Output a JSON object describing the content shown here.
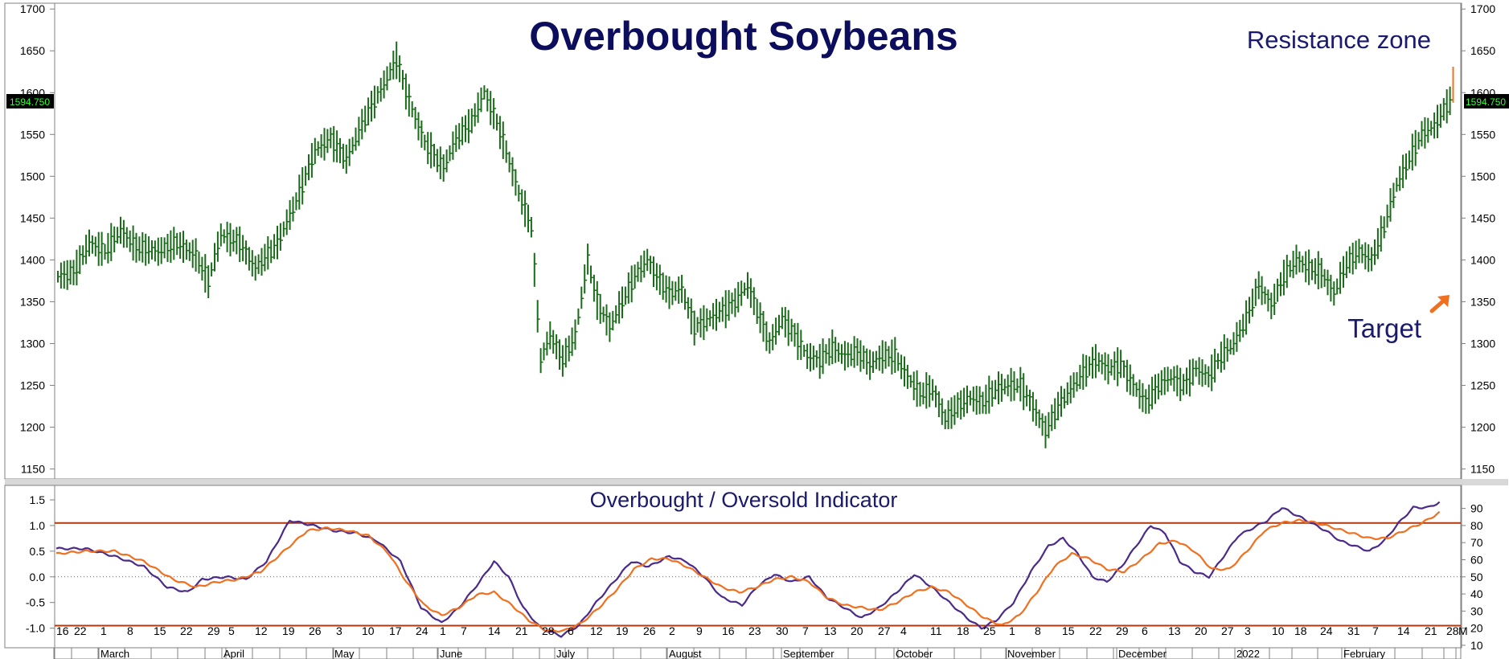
{
  "chart_data": [
    {
      "type": "ohlc",
      "title": "Overbought Soybeans",
      "ylim": [
        1140,
        1705
      ],
      "y_ticks": [
        1150,
        1200,
        1250,
        1300,
        1350,
        1400,
        1450,
        1500,
        1550,
        1600,
        1650,
        1700
      ],
      "last_price_label": "1594.750",
      "last_value": 1594.75,
      "annotations": [
        {
          "text": "Resistance zone",
          "color": "#1a1a6e"
        },
        {
          "text": "Target",
          "color": "#1a1a6e",
          "arrow_color": "#f07020"
        }
      ],
      "bar_color": "#1a6b1a",
      "last_bar_color": "#f07020",
      "close_anchors": [
        [
          0,
          1380
        ],
        [
          5,
          1385
        ],
        [
          10,
          1420
        ],
        [
          15,
          1410
        ],
        [
          20,
          1435
        ],
        [
          25,
          1415
        ],
        [
          32,
          1410
        ],
        [
          38,
          1420
        ],
        [
          44,
          1405
        ],
        [
          48,
          1375
        ],
        [
          52,
          1430
        ],
        [
          58,
          1420
        ],
        [
          63,
          1390
        ],
        [
          70,
          1420
        ],
        [
          76,
          1470
        ],
        [
          82,
          1530
        ],
        [
          87,
          1545
        ],
        [
          92,
          1520
        ],
        [
          98,
          1570
        ],
        [
          104,
          1610
        ],
        [
          108,
          1640
        ],
        [
          112,
          1590
        ],
        [
          117,
          1540
        ],
        [
          123,
          1510
        ],
        [
          127,
          1545
        ],
        [
          132,
          1565
        ],
        [
          136,
          1600
        ],
        [
          140,
          1565
        ],
        [
          143,
          1530
        ],
        [
          147,
          1480
        ],
        [
          151,
          1440
        ],
        [
          154,
          1280
        ],
        [
          157,
          1310
        ],
        [
          161,
          1280
        ],
        [
          165,
          1310
        ],
        [
          169,
          1400
        ],
        [
          172,
          1350
        ],
        [
          176,
          1320
        ],
        [
          180,
          1350
        ],
        [
          184,
          1380
        ],
        [
          188,
          1400
        ],
        [
          191,
          1380
        ],
        [
          195,
          1360
        ],
        [
          199,
          1365
        ],
        [
          203,
          1320
        ],
        [
          208,
          1330
        ],
        [
          212,
          1340
        ],
        [
          216,
          1350
        ],
        [
          220,
          1370
        ],
        [
          223,
          1340
        ],
        [
          227,
          1300
        ],
        [
          231,
          1330
        ],
        [
          235,
          1310
        ],
        [
          239,
          1285
        ],
        [
          243,
          1280
        ],
        [
          247,
          1295
        ],
        [
          251,
          1285
        ],
        [
          255,
          1290
        ],
        [
          259,
          1275
        ],
        [
          263,
          1285
        ],
        [
          267,
          1285
        ],
        [
          271,
          1260
        ],
        [
          275,
          1240
        ],
        [
          279,
          1245
        ],
        [
          283,
          1210
        ],
        [
          287,
          1225
        ],
        [
          291,
          1235
        ],
        [
          295,
          1230
        ],
        [
          299,
          1245
        ],
        [
          303,
          1250
        ],
        [
          307,
          1250
        ],
        [
          311,
          1225
        ],
        [
          315,
          1195
        ],
        [
          319,
          1225
        ],
        [
          323,
          1245
        ],
        [
          327,
          1265
        ],
        [
          331,
          1280
        ],
        [
          335,
          1270
        ],
        [
          339,
          1275
        ],
        [
          343,
          1250
        ],
        [
          347,
          1230
        ],
        [
          351,
          1250
        ],
        [
          355,
          1260
        ],
        [
          359,
          1250
        ],
        [
          363,
          1270
        ],
        [
          367,
          1260
        ],
        [
          371,
          1285
        ],
        [
          375,
          1300
        ],
        [
          379,
          1330
        ],
        [
          383,
          1370
        ],
        [
          387,
          1345
        ],
        [
          391,
          1380
        ],
        [
          395,
          1400
        ],
        [
          399,
          1390
        ],
        [
          403,
          1385
        ],
        [
          407,
          1360
        ],
        [
          411,
          1395
        ],
        [
          415,
          1410
        ],
        [
          419,
          1400
        ],
        [
          423,
          1440
        ],
        [
          427,
          1490
        ],
        [
          431,
          1520
        ],
        [
          435,
          1550
        ],
        [
          439,
          1560
        ],
        [
          443,
          1585
        ],
        [
          445,
          1595
        ]
      ],
      "x_ticks_days": [
        "16",
        "22",
        "1",
        "8",
        "15",
        "22",
        "29",
        "5",
        "12",
        "19",
        "26",
        "3",
        "10",
        "17",
        "24",
        "1",
        "7",
        "14",
        "21",
        "28",
        "6",
        "12",
        "19",
        "26",
        "2",
        "9",
        "16",
        "23",
        "30",
        "7",
        "13",
        "20",
        "27",
        "4",
        "11",
        "18",
        "25",
        "1",
        "8",
        "15",
        "22",
        "29",
        "6",
        "13",
        "20",
        "27",
        "3",
        "10",
        "18",
        "24",
        "31",
        "7",
        "14",
        "21",
        "28",
        "M"
      ],
      "x_ticks_months": [
        "March",
        "April",
        "May",
        "June",
        "July",
        "August",
        "September",
        "October",
        "November",
        "December",
        "2022",
        "February"
      ]
    },
    {
      "type": "line",
      "title": "Overbought / Oversold Indicator",
      "ylim": [
        -1.35,
        1.75
      ],
      "y_ticks_left": [
        "1.5",
        "1.0",
        "0.5",
        "0.0",
        "-0.5",
        "-1.0"
      ],
      "y_ticks_right": [
        "90",
        "80",
        "70",
        "60",
        "50",
        "40",
        "30",
        "20",
        "10"
      ],
      "overbought_level": 1.05,
      "oversold_level": -0.95,
      "series": [
        {
          "color": "#4a2a8a",
          "anchors": [
            [
              0,
              0.55
            ],
            [
              10,
              0.55
            ],
            [
              20,
              0.4
            ],
            [
              30,
              0.2
            ],
            [
              38,
              -0.2
            ],
            [
              45,
              -0.3
            ],
            [
              50,
              -0.05
            ],
            [
              58,
              0.0
            ],
            [
              65,
              -0.05
            ],
            [
              72,
              0.3
            ],
            [
              80,
              1.1
            ],
            [
              88,
              1.0
            ],
            [
              95,
              0.9
            ],
            [
              103,
              0.85
            ],
            [
              110,
              0.7
            ],
            [
              118,
              0.3
            ],
            [
              125,
              -0.6
            ],
            [
              132,
              -0.9
            ],
            [
              138,
              -0.6
            ],
            [
              145,
              -0.1
            ],
            [
              150,
              0.3
            ],
            [
              155,
              0.0
            ],
            [
              160,
              -0.6
            ],
            [
              166,
              -1.0
            ],
            [
              173,
              -1.15
            ],
            [
              179,
              -0.95
            ],
            [
              185,
              -0.5
            ],
            [
              191,
              -0.1
            ],
            [
              197,
              0.3
            ],
            [
              203,
              0.2
            ],
            [
              210,
              0.4
            ],
            [
              216,
              0.3
            ],
            [
              222,
              0.0
            ],
            [
              228,
              -0.4
            ],
            [
              235,
              -0.55
            ],
            [
              240,
              -0.2
            ],
            [
              246,
              0.05
            ],
            [
              252,
              -0.1
            ],
            [
              258,
              0.0
            ],
            [
              264,
              -0.4
            ],
            [
              270,
              -0.6
            ],
            [
              276,
              -0.8
            ],
            [
              282,
              -0.6
            ],
            [
              288,
              -0.3
            ],
            [
              294,
              0.05
            ],
            [
              300,
              -0.2
            ],
            [
              306,
              -0.5
            ],
            [
              312,
              -0.8
            ],
            [
              317,
              -1.0
            ],
            [
              322,
              -0.85
            ],
            [
              328,
              -0.5
            ],
            [
              334,
              0.1
            ],
            [
              340,
              0.6
            ],
            [
              345,
              0.75
            ],
            [
              350,
              0.45
            ],
            [
              355,
              0.0
            ],
            [
              360,
              -0.1
            ],
            [
              365,
              0.2
            ],
            [
              370,
              0.6
            ],
            [
              375,
              1.0
            ],
            [
              380,
              0.85
            ],
            [
              385,
              0.3
            ],
            [
              390,
              0.1
            ],
            [
              395,
              0.0
            ],
            [
              400,
              0.4
            ],
            [
              405,
              0.8
            ],
            [
              410,
              0.95
            ],
            [
              415,
              1.1
            ],
            [
              420,
              1.35
            ],
            [
              425,
              1.2
            ],
            [
              430,
              1.05
            ],
            [
              435,
              0.9
            ],
            [
              440,
              0.7
            ],
            [
              445,
              0.6
            ],
            [
              450,
              0.5
            ],
            [
              455,
              0.7
            ],
            [
              460,
              1.05
            ],
            [
              465,
              1.35
            ],
            [
              470,
              1.35
            ],
            [
              474,
              1.45
            ]
          ]
        },
        {
          "color": "#f07020",
          "anchors": [
            [
              0,
              0.45
            ],
            [
              10,
              0.5
            ],
            [
              20,
              0.5
            ],
            [
              30,
              0.3
            ],
            [
              40,
              -0.05
            ],
            [
              48,
              -0.2
            ],
            [
              55,
              -0.1
            ],
            [
              62,
              -0.05
            ],
            [
              70,
              0.1
            ],
            [
              78,
              0.5
            ],
            [
              86,
              0.9
            ],
            [
              93,
              0.95
            ],
            [
              100,
              0.9
            ],
            [
              107,
              0.8
            ],
            [
              114,
              0.45
            ],
            [
              120,
              -0.1
            ],
            [
              126,
              -0.55
            ],
            [
              132,
              -0.75
            ],
            [
              138,
              -0.6
            ],
            [
              144,
              -0.35
            ],
            [
              150,
              -0.3
            ],
            [
              156,
              -0.55
            ],
            [
              162,
              -0.85
            ],
            [
              168,
              -1.05
            ],
            [
              174,
              -1.05
            ],
            [
              180,
              -0.9
            ],
            [
              186,
              -0.6
            ],
            [
              192,
              -0.25
            ],
            [
              198,
              0.15
            ],
            [
              204,
              0.35
            ],
            [
              210,
              0.35
            ],
            [
              216,
              0.2
            ],
            [
              222,
              0.0
            ],
            [
              228,
              -0.2
            ],
            [
              234,
              -0.3
            ],
            [
              240,
              -0.2
            ],
            [
              246,
              -0.05
            ],
            [
              252,
              0.0
            ],
            [
              258,
              -0.1
            ],
            [
              264,
              -0.4
            ],
            [
              270,
              -0.55
            ],
            [
              276,
              -0.6
            ],
            [
              282,
              -0.65
            ],
            [
              288,
              -0.5
            ],
            [
              294,
              -0.3
            ],
            [
              300,
              -0.2
            ],
            [
              306,
              -0.3
            ],
            [
              312,
              -0.55
            ],
            [
              318,
              -0.8
            ],
            [
              324,
              -0.95
            ],
            [
              330,
              -0.75
            ],
            [
              336,
              -0.3
            ],
            [
              342,
              0.2
            ],
            [
              348,
              0.45
            ],
            [
              354,
              0.35
            ],
            [
              360,
              0.15
            ],
            [
              366,
              0.1
            ],
            [
              372,
              0.35
            ],
            [
              378,
              0.65
            ],
            [
              384,
              0.7
            ],
            [
              390,
              0.5
            ],
            [
              396,
              0.15
            ],
            [
              402,
              0.15
            ],
            [
              408,
              0.5
            ],
            [
              414,
              0.9
            ],
            [
              420,
              1.05
            ],
            [
              426,
              1.1
            ],
            [
              432,
              1.05
            ],
            [
              438,
              0.95
            ],
            [
              444,
              0.85
            ],
            [
              450,
              0.75
            ],
            [
              456,
              0.75
            ],
            [
              462,
              0.9
            ],
            [
              468,
              1.05
            ],
            [
              474,
              1.25
            ]
          ]
        }
      ]
    }
  ]
}
